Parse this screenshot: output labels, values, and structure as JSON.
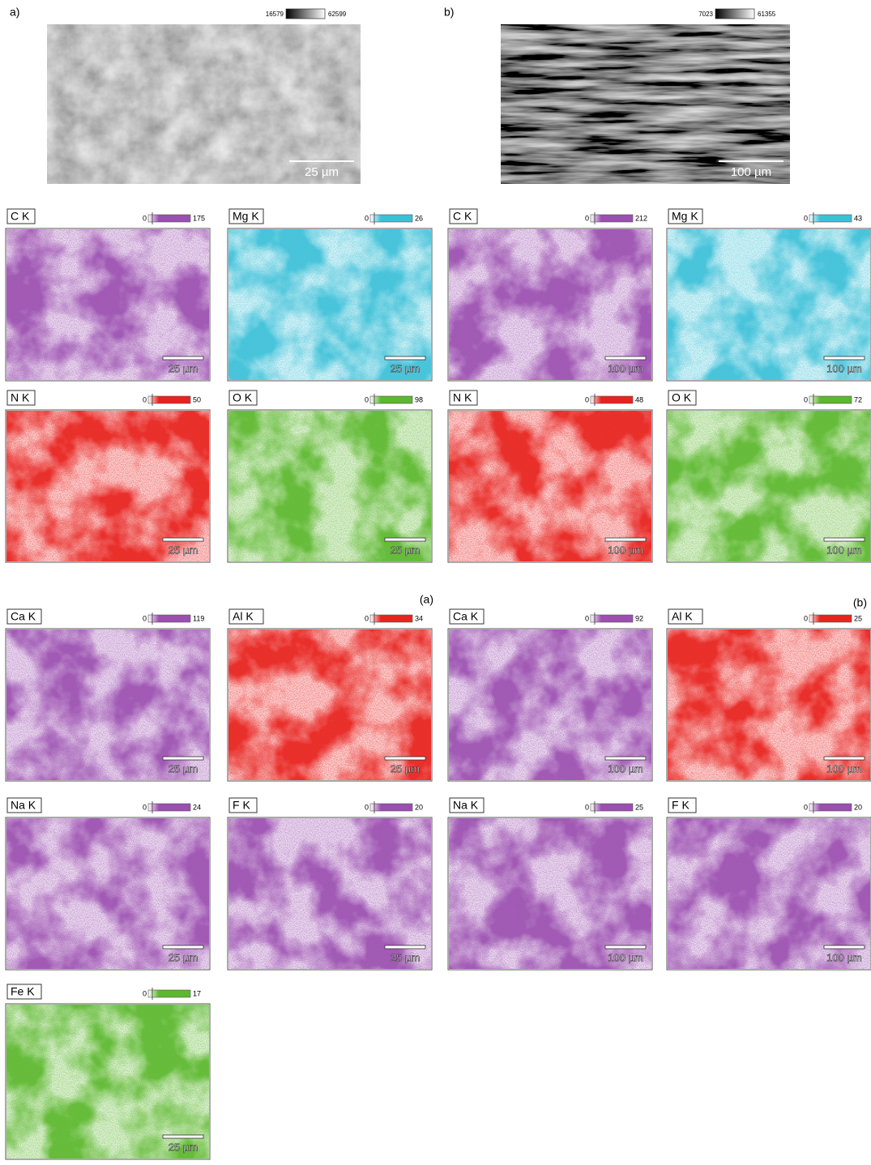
{
  "sem": [
    {
      "label": "a)",
      "min": 16579,
      "max": 62599,
      "scale": "25 µm"
    },
    {
      "label": "b)",
      "min": 7023,
      "max": 61355,
      "scale": "100 µm"
    }
  ],
  "group_labels": [
    "(a)",
    "(b)"
  ],
  "maps": [
    {
      "element": "C K",
      "min": 0,
      "max": 175,
      "scale": "25 µm",
      "color": "#9b4fb0"
    },
    {
      "element": "Mg K",
      "min": 0,
      "max": 26,
      "scale": "25 µm",
      "color": "#3cc0d8"
    },
    {
      "element": "C K",
      "min": 0,
      "max": 212,
      "scale": "100 µm",
      "color": "#9b4fb0"
    },
    {
      "element": "Mg K",
      "min": 0,
      "max": 43,
      "scale": "100 µm",
      "color": "#3cc0d8"
    },
    {
      "element": "N K",
      "min": 0,
      "max": 50,
      "scale": "25 µm",
      "color": "#e8231f"
    },
    {
      "element": "O K",
      "min": 0,
      "max": 98,
      "scale": "25 µm",
      "color": "#5cb82e"
    },
    {
      "element": "N K",
      "min": 0,
      "max": 48,
      "scale": "100 µm",
      "color": "#e8231f"
    },
    {
      "element": "O K",
      "min": 0,
      "max": 72,
      "scale": "100 µm",
      "color": "#5cb82e"
    },
    {
      "element": "Ca K",
      "min": 0,
      "max": 119,
      "scale": "25 µm",
      "color": "#9b4fb0"
    },
    {
      "element": "Al K",
      "min": 0,
      "max": 34,
      "scale": "25 µm",
      "color": "#e8231f"
    },
    {
      "element": "Ca K",
      "min": 0,
      "max": 92,
      "scale": "100 µm",
      "color": "#9b4fb0"
    },
    {
      "element": "Al K",
      "min": 0,
      "max": 25,
      "scale": "100 µm",
      "color": "#e8231f"
    },
    {
      "element": "Na K",
      "min": 0,
      "max": 24,
      "scale": "25 µm",
      "color": "#9b4fb0"
    },
    {
      "element": "F K",
      "min": 0,
      "max": 20,
      "scale": "25 µm",
      "color": "#9b4fb0"
    },
    {
      "element": "Na K",
      "min": 0,
      "max": 25,
      "scale": "100 µm",
      "color": "#9b4fb0"
    },
    {
      "element": "F K",
      "min": 0,
      "max": 20,
      "scale": "100 µm",
      "color": "#9b4fb0"
    },
    {
      "element": "Fe K",
      "min": 0,
      "max": 17,
      "scale": "25 µm",
      "color": "#5cb82e"
    }
  ]
}
